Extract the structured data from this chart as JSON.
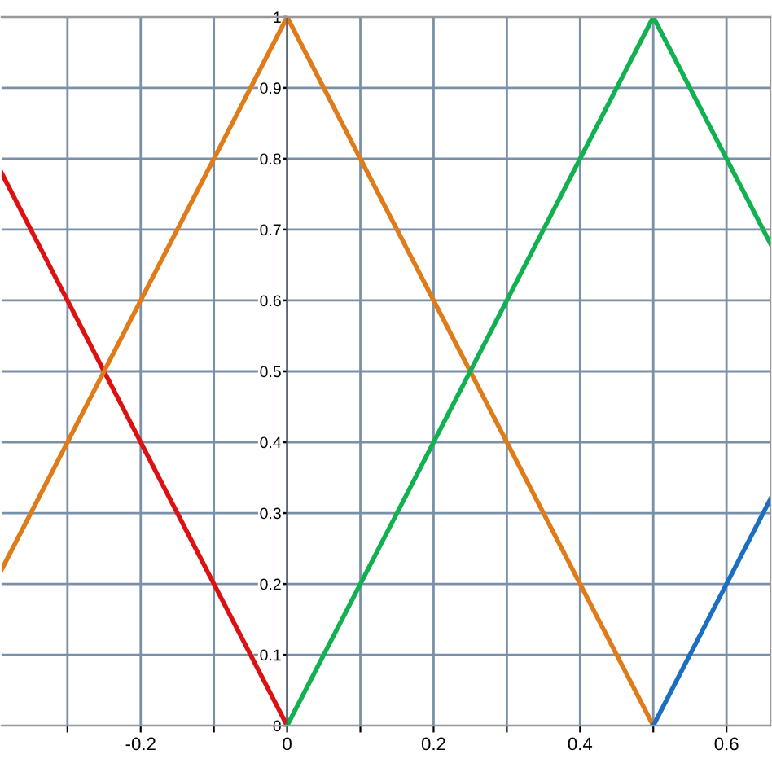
{
  "chart_data": {
    "type": "line",
    "series": [
      {
        "color": "#dd1111",
        "x": [
          -0.39,
          0
        ],
        "values": [
          0.78,
          0
        ]
      },
      {
        "color": "#e07b1a",
        "x": [
          -0.39,
          0,
          0.5
        ],
        "values": [
          0.22,
          1,
          0
        ]
      },
      {
        "color": "#11b050",
        "x": [
          0,
          0.5,
          0.66
        ],
        "values": [
          0,
          1,
          0.68
        ]
      },
      {
        "color": "#1a6fc0",
        "x": [
          0.5,
          0.66
        ],
        "values": [
          0,
          0.32
        ]
      }
    ],
    "xlim": [
      -0.39,
      0.66
    ],
    "ylim": [
      0,
      1
    ],
    "xticks": [
      {
        "value": -0.3,
        "label": null
      },
      -0.2,
      {
        "value": -0.1,
        "label": null
      },
      0,
      {
        "value": 0.1,
        "label": null
      },
      0.2,
      {
        "value": 0.3,
        "label": null
      },
      0.4,
      {
        "value": 0.5,
        "label": null
      },
      0.6
    ],
    "yticks": [
      0,
      0.1,
      0.2,
      0.3,
      0.4,
      0.5,
      0.6,
      0.7,
      0.8,
      0.9,
      1
    ],
    "grid": true,
    "marker": "none",
    "line_style": "solid"
  }
}
